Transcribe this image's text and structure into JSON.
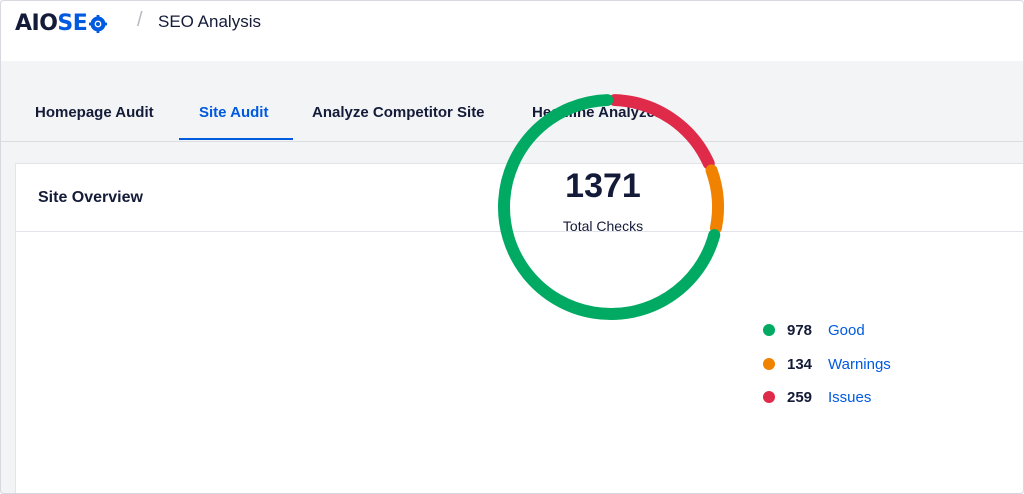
{
  "header": {
    "logo_aio": "AIO",
    "logo_seo": "SE",
    "separator": "/",
    "page_title": "SEO Analysis"
  },
  "tabs": [
    {
      "label": "Homepage Audit",
      "active": false
    },
    {
      "label": "Site Audit",
      "active": true
    },
    {
      "label": "Analyze Competitor Site",
      "active": false
    },
    {
      "label": "Headline Analyzer",
      "active": false
    }
  ],
  "overview": {
    "title": "Site Overview",
    "total": "1371",
    "total_label": "Total Checks",
    "items": [
      {
        "count": "978",
        "label": "Good",
        "value": 978,
        "color": "#00aa63"
      },
      {
        "count": "134",
        "label": "Warnings",
        "value": 134,
        "color": "#f18200"
      },
      {
        "count": "259",
        "label": "Issues",
        "value": 259,
        "color": "#df2a4a"
      }
    ]
  },
  "colors": {
    "accent": "#005ae0",
    "text": "#141b38"
  }
}
